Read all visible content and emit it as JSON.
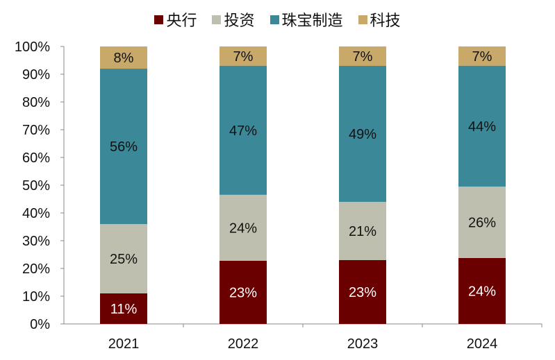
{
  "chart_data": {
    "type": "bar",
    "stacked": true,
    "categories": [
      "2021",
      "2022",
      "2023",
      "2024"
    ],
    "series": [
      {
        "name": "央行",
        "color": "#6b0000",
        "values": [
          11,
          23,
          23,
          24
        ]
      },
      {
        "name": "投资",
        "color": "#bfbfaf",
        "values": [
          25,
          24,
          21,
          26
        ]
      },
      {
        "name": "珠宝制造",
        "color": "#3a8898",
        "values": [
          56,
          47,
          49,
          44
        ]
      },
      {
        "name": "科技",
        "color": "#c8a96a",
        "values": [
          8,
          7,
          7,
          7
        ]
      }
    ],
    "data_label_suffix": "%",
    "yticks": [
      "0%",
      "10%",
      "20%",
      "30%",
      "40%",
      "50%",
      "60%",
      "70%",
      "80%",
      "90%",
      "100%"
    ],
    "ylim": [
      0,
      100
    ],
    "grid": false,
    "legend": "top"
  }
}
